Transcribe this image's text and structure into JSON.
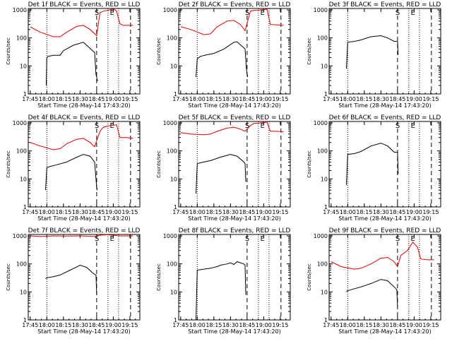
{
  "chart_data": [
    {
      "id": "1f",
      "title": "Det 1f BLACK = Events, RED = LLD",
      "type": "line",
      "xlabel": "Start Time (28-May-14 17:43:20)",
      "ylabel": "Counts/sec",
      "xticks": [
        "17:45",
        "18:00",
        "18:15",
        "18:30",
        "18:45",
        "19:00",
        "19:15"
      ],
      "yticks": [
        "1",
        "10",
        "100",
        "1000"
      ],
      "events": {
        "name": "Events",
        "x": [
          17.99,
          18.0,
          18.02,
          18.1,
          18.2,
          18.25,
          18.4,
          18.55,
          18.58,
          18.72,
          18.74,
          18.75,
          18.76,
          18.77
        ],
        "y": [
          2,
          20,
          22,
          24,
          24,
          35,
          55,
          70,
          60,
          30,
          5,
          4,
          3,
          3
        ]
      },
      "lld": {
        "name": "LLD",
        "x": [
          17.75,
          17.9,
          18.1,
          18.2,
          18.3,
          18.45,
          18.55,
          18.65,
          18.75,
          18.8,
          18.85,
          18.95,
          19.0,
          19.05,
          19.1,
          19.15,
          19.3
        ],
        "y": [
          250,
          160,
          110,
          110,
          160,
          260,
          280,
          200,
          120,
          800,
          900,
          1000,
          1100,
          900,
          320,
          280,
          280
        ]
      },
      "markers": [
        {
          "label": "S",
          "x": 18.75
        },
        {
          "label": "E",
          "x": 18.98
        }
      ],
      "dotted": [
        18.0,
        18.92,
        19.08
      ],
      "dashed": [
        18.75,
        19.26
      ]
    },
    {
      "id": "2f",
      "title": "Det 2f BLACK = Events, RED = LLD",
      "type": "line",
      "xlabel": "Start Time (28-May-14 17:43:20)",
      "ylabel": "Counts/sec",
      "xticks": [
        "17:45",
        "18:00",
        "18:15",
        "18:30",
        "18:45",
        "19:00",
        "19:15"
      ],
      "yticks": [
        "1",
        "10",
        "100",
        "1000"
      ],
      "events": {
        "name": "Events",
        "x": [
          17.98,
          18.0,
          18.05,
          18.15,
          18.25,
          18.4,
          18.55,
          18.6,
          18.72,
          18.74,
          18.75,
          18.76
        ],
        "y": [
          4,
          18,
          22,
          25,
          28,
          40,
          70,
          72,
          40,
          8,
          5,
          4
        ]
      },
      "lld": {
        "name": "LLD",
        "x": [
          17.75,
          17.9,
          18.1,
          18.2,
          18.3,
          18.45,
          18.55,
          18.65,
          18.72,
          18.8,
          18.85,
          18.95,
          19.05,
          19.1,
          19.2,
          19.3
        ],
        "y": [
          250,
          200,
          130,
          140,
          250,
          400,
          420,
          300,
          180,
          900,
          950,
          1000,
          1050,
          300,
          290,
          280
        ]
      },
      "markers": [
        {
          "label": "S",
          "x": 18.75
        },
        {
          "label": "E",
          "x": 18.98
        }
      ],
      "dotted": [
        18.0,
        18.92,
        19.08
      ],
      "dashed": [
        18.75,
        19.26
      ]
    },
    {
      "id": "3f",
      "title": "Det 3f BLACK = Events, RED = LLD",
      "type": "line",
      "xlabel": "Start Time (28-May-14 17:43:20)",
      "ylabel": "Counts/sec",
      "xticks": [
        "17:45",
        "18:00",
        "18:15",
        "18:30",
        "18:45",
        "19:00",
        "19:15"
      ],
      "yticks": [
        "1",
        "10",
        "100",
        "1000"
      ],
      "events": {
        "name": "Events",
        "x": [
          17.98,
          18.0,
          18.1,
          18.2,
          18.35,
          18.5,
          18.6,
          18.7,
          18.75,
          18.76
        ],
        "y": [
          8,
          70,
          75,
          85,
          110,
          120,
          100,
          75,
          75,
          25
        ]
      },
      "lld": {
        "name": "LLD",
        "x": [],
        "y": []
      },
      "markers": [
        {
          "label": "S",
          "x": 18.75
        },
        {
          "label": "E",
          "x": 18.98
        }
      ],
      "dotted": [
        18.0,
        18.92,
        19.08
      ],
      "dashed": [
        18.75,
        19.26
      ]
    },
    {
      "id": "4f",
      "title": "Det 4f BLACK = Events, RED = LLD",
      "type": "line",
      "xlabel": "Start Time (28-May-14 17:43:20)",
      "ylabel": "Counts/sec",
      "xticks": [
        "17:45",
        "18:00",
        "18:15",
        "18:30",
        "18:45",
        "19:00",
        "19:15"
      ],
      "yticks": [
        "1",
        "10",
        "100",
        "1000"
      ],
      "events": {
        "name": "Events",
        "x": [
          17.98,
          18.0,
          18.05,
          18.15,
          18.3,
          18.45,
          18.55,
          18.65,
          18.72,
          18.74,
          18.75,
          18.76
        ],
        "y": [
          4,
          25,
          28,
          32,
          40,
          60,
          75,
          65,
          40,
          10,
          5,
          4
        ]
      },
      "lld": {
        "name": "LLD",
        "x": [
          17.75,
          17.9,
          18.1,
          18.2,
          18.3,
          18.45,
          18.55,
          18.65,
          18.72,
          18.8,
          18.85,
          18.95,
          19.05,
          19.1,
          19.2,
          19.3
        ],
        "y": [
          200,
          150,
          110,
          120,
          180,
          260,
          280,
          200,
          140,
          500,
          700,
          800,
          850,
          300,
          300,
          280
        ]
      },
      "markers": [
        {
          "label": "S",
          "x": 18.75
        },
        {
          "label": "E",
          "x": 18.98
        }
      ],
      "dotted": [
        18.0,
        18.92,
        19.08
      ],
      "dashed": [
        18.75,
        19.26
      ]
    },
    {
      "id": "5f",
      "title": "Det 5f BLACK = Events, RED = LLD",
      "type": "line",
      "xlabel": "Start Time (28-May-14 17:43:20)",
      "ylabel": "Counts/sec",
      "xticks": [
        "17:45",
        "18:00",
        "18:15",
        "18:30",
        "18:45",
        "19:00",
        "19:15"
      ],
      "yticks": [
        "1",
        "10",
        "100",
        "1000"
      ],
      "events": {
        "name": "Events",
        "x": [
          17.98,
          18.0,
          18.1,
          18.2,
          18.35,
          18.5,
          18.6,
          18.7,
          18.72,
          18.73
        ],
        "y": [
          3,
          35,
          40,
          45,
          60,
          75,
          65,
          40,
          35,
          8
        ]
      },
      "lld": {
        "name": "LLD",
        "x": [
          17.75,
          17.9,
          18.1,
          18.2,
          18.3,
          18.45,
          18.55,
          18.65,
          18.72,
          18.8,
          18.85,
          18.95,
          19.05,
          19.1,
          19.2,
          19.3
        ],
        "y": [
          450,
          400,
          380,
          400,
          500,
          650,
          700,
          600,
          500,
          800,
          950,
          1000,
          1050,
          500,
          500,
          480
        ]
      },
      "markers": [
        {
          "label": "S",
          "x": 18.75
        },
        {
          "label": "E",
          "x": 18.98
        }
      ],
      "dotted": [
        18.0,
        18.92,
        19.08
      ],
      "dashed": [
        18.75,
        19.26
      ]
    },
    {
      "id": "6f",
      "title": "Det 6f BLACK = Events, RED = LLD",
      "type": "line",
      "xlabel": "Start Time (28-May-14 17:43:20)",
      "ylabel": "Counts/sec",
      "xticks": [
        "17:45",
        "18:00",
        "18:15",
        "18:30",
        "18:45",
        "19:00",
        "19:15"
      ],
      "yticks": [
        "1",
        "10",
        "100",
        "1000"
      ],
      "events": {
        "name": "Events",
        "x": [
          17.98,
          18.0,
          18.1,
          18.2,
          18.35,
          18.5,
          18.6,
          18.7,
          18.75,
          18.76
        ],
        "y": [
          6,
          75,
          80,
          95,
          150,
          190,
          150,
          90,
          90,
          15
        ]
      },
      "lld": {
        "name": "LLD",
        "x": [],
        "y": []
      },
      "markers": [
        {
          "label": "S",
          "x": 18.75
        },
        {
          "label": "E",
          "x": 18.98
        }
      ],
      "dotted": [
        18.0,
        18.92,
        19.08
      ],
      "dashed": [
        18.75,
        19.26
      ]
    },
    {
      "id": "7f",
      "title": "Det 7f BLACK = Events, RED = LLD",
      "type": "line",
      "xlabel": "Start Time (28-May-14 17:43:20)",
      "ylabel": "Counts/sec",
      "xticks": [
        "17:45",
        "18:00",
        "18:15",
        "18:30",
        "18:45",
        "19:00",
        "19:15"
      ],
      "yticks": [
        "1",
        "10",
        "100",
        "1000"
      ],
      "events": {
        "name": "Events",
        "x": [
          17.98,
          18.0,
          18.1,
          18.2,
          18.35,
          18.5,
          18.6,
          18.7,
          18.74,
          18.75
        ],
        "y": [
          30,
          32,
          35,
          40,
          60,
          90,
          75,
          45,
          40,
          8
        ]
      },
      "lld": {
        "name": "LLD",
        "x": [
          17.75,
          17.9,
          18.1,
          18.3,
          18.5,
          18.7,
          18.75,
          18.8,
          18.9,
          19.0,
          19.1,
          19.2,
          19.3
        ],
        "y": [
          1000,
          950,
          1000,
          980,
          1000,
          960,
          1000,
          1050,
          1100,
          1050,
          1000,
          1000,
          1000
        ]
      },
      "markers": [
        {
          "label": "S",
          "x": 18.75
        },
        {
          "label": "E",
          "x": 18.98
        }
      ],
      "dotted": [
        18.0,
        18.92,
        19.08
      ],
      "dashed": [
        18.75,
        19.26
      ]
    },
    {
      "id": "8f",
      "title": "Det 8f BLACK = Events, RED = LLD",
      "type": "line",
      "xlabel": "Start Time (28-May-14 17:43:20)",
      "ylabel": "Counts/sec",
      "xticks": [
        "17:45",
        "18:00",
        "18:15",
        "18:30",
        "18:45",
        "19:00",
        "19:15"
      ],
      "yticks": [
        "1",
        "10",
        "100",
        "1000"
      ],
      "events": {
        "name": "Events",
        "x": [
          17.98,
          18.0,
          18.1,
          18.2,
          18.3,
          18.35,
          18.45,
          18.5,
          18.55,
          18.6,
          18.7,
          18.72,
          18.73
        ],
        "y": [
          1,
          60,
          65,
          70,
          80,
          90,
          100,
          110,
          95,
          120,
          100,
          90,
          8
        ]
      },
      "lld": {
        "name": "LLD",
        "x": [],
        "y": []
      },
      "markers": [
        {
          "label": "S",
          "x": 18.75
        },
        {
          "label": "E",
          "x": 18.98
        }
      ],
      "dotted": [
        18.0,
        18.92,
        19.08
      ],
      "dashed": [
        18.75,
        19.26
      ]
    },
    {
      "id": "9f",
      "title": "Det 9f BLACK = Events, RED = LLD",
      "type": "line",
      "xlabel": "Start Time (28-May-14 17:43:20)",
      "ylabel": "Counts/sec",
      "xticks": [
        "17:45",
        "18:00",
        "18:15",
        "18:30",
        "18:45",
        "19:00",
        "19:15"
      ],
      "yticks": [
        "1",
        "10",
        "100",
        "1000"
      ],
      "events": {
        "name": "Events",
        "x": [
          17.98,
          18.0,
          18.1,
          18.2,
          18.35,
          18.5,
          18.6,
          18.7,
          18.74,
          18.75
        ],
        "y": [
          10,
          11,
          13,
          15,
          20,
          28,
          25,
          15,
          12,
          3
        ]
      },
      "lld": {
        "name": "LLD",
        "x": [
          17.75,
          17.9,
          18.1,
          18.2,
          18.35,
          18.5,
          18.6,
          18.7,
          18.75,
          18.8,
          18.9,
          18.98,
          19.05,
          19.1,
          19.2,
          19.3
        ],
        "y": [
          120,
          80,
          65,
          70,
          100,
          160,
          170,
          120,
          80,
          200,
          300,
          600,
          400,
          150,
          140,
          140
        ]
      },
      "markers": [
        {
          "label": "S",
          "x": 18.75
        },
        {
          "label": "E",
          "x": 18.98
        }
      ],
      "dotted": [
        18.0,
        18.92,
        19.08
      ],
      "dashed": [
        18.75,
        19.26
      ]
    }
  ],
  "colors": {
    "events": "#000000",
    "lld": "#e00000"
  }
}
